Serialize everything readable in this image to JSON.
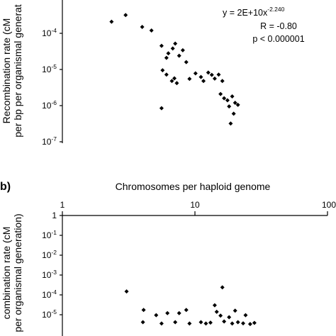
{
  "chart_data": [
    {
      "type": "scatter",
      "title": "",
      "ylabel_line1": "Recombination rate (cM",
      "ylabel_line2": "per bp per organismal generat",
      "x_scale": "log",
      "xlim": [
        1,
        100
      ],
      "y_scale": "log",
      "ylim": [
        1e-07,
        0.001
      ],
      "y_ticks": [
        {
          "value": 0.0001,
          "base": "10",
          "exp": "-4"
        },
        {
          "value": 1e-05,
          "base": "10",
          "exp": "-5"
        },
        {
          "value": 1e-06,
          "base": "10",
          "exp": "-6"
        },
        {
          "value": 1e-07,
          "base": "10",
          "exp": "-7"
        }
      ],
      "annotation": {
        "equation_prefix": "y = 2E+10x",
        "equation_exp": "-2.240",
        "r_text": "R = -0.80",
        "p_text": "p < 0.000001"
      },
      "trendline": {
        "a": 20000000000,
        "b": -2.24,
        "x_from": 2.6,
        "x_to": 27
      },
      "points": [
        {
          "x": 2.35,
          "y": 0.00021
        },
        {
          "x": 3.0,
          "y": 0.00032
        },
        {
          "x": 4.0,
          "y": 0.00015
        },
        {
          "x": 4.7,
          "y": 0.00012
        },
        {
          "x": 5.6,
          "y": 4.5e-05
        },
        {
          "x": 6.8,
          "y": 3.8e-05
        },
        {
          "x": 7.1,
          "y": 5.2e-05
        },
        {
          "x": 6.3,
          "y": 2.8e-05
        },
        {
          "x": 6.1,
          "y": 2.1e-05
        },
        {
          "x": 7.6,
          "y": 2.4e-05
        },
        {
          "x": 8.1,
          "y": 3.4e-05
        },
        {
          "x": 5.7,
          "y": 9.5e-06
        },
        {
          "x": 6.1,
          "y": 7.2e-06
        },
        {
          "x": 6.7,
          "y": 4.8e-06
        },
        {
          "x": 7.0,
          "y": 5.7e-06
        },
        {
          "x": 7.3,
          "y": 4.2e-06
        },
        {
          "x": 8.6,
          "y": 1.6e-05
        },
        {
          "x": 9.1,
          "y": 5.5e-06
        },
        {
          "x": 10.1,
          "y": 7.8e-06
        },
        {
          "x": 11.1,
          "y": 6.2e-06
        },
        {
          "x": 11.6,
          "y": 4.8e-06
        },
        {
          "x": 12.6,
          "y": 8.2e-06
        },
        {
          "x": 13.4,
          "y": 7.1e-06
        },
        {
          "x": 14.1,
          "y": 5.6e-06
        },
        {
          "x": 15.1,
          "y": 7.2e-06
        },
        {
          "x": 16.1,
          "y": 4.8e-06
        },
        {
          "x": 15.6,
          "y": 2.1e-06
        },
        {
          "x": 16.6,
          "y": 1.6e-06
        },
        {
          "x": 17.6,
          "y": 1.4e-06
        },
        {
          "x": 19.1,
          "y": 1.8e-06
        },
        {
          "x": 18.1,
          "y": 9.5e-07
        },
        {
          "x": 20.1,
          "y": 1.2e-06
        },
        {
          "x": 21.1,
          "y": 1.05e-06
        },
        {
          "x": 5.6,
          "y": 8.5e-07
        },
        {
          "x": 18.6,
          "y": 3.2e-07
        },
        {
          "x": 19.6,
          "y": 6e-07
        }
      ]
    },
    {
      "type": "scatter",
      "panel_label": "b)",
      "title": "",
      "xlabel": "Chromosomes per haploid genome",
      "ylabel_line1": "combination rate (cM",
      "ylabel_line2": "per organismal generation)",
      "x_scale": "log",
      "xlim": [
        1,
        100
      ],
      "x_ticks": [
        {
          "value": 1,
          "label": "1"
        },
        {
          "value": 10,
          "label": "10"
        },
        {
          "value": 100,
          "label": "100"
        }
      ],
      "y_scale": "log",
      "ylim": [
        1e-06,
        1
      ],
      "y_ticks": [
        {
          "value": 1,
          "base": "1",
          "exp": ""
        },
        {
          "value": 0.1,
          "base": "10",
          "exp": "-1"
        },
        {
          "value": 0.01,
          "base": "10",
          "exp": "-2"
        },
        {
          "value": 0.001,
          "base": "10",
          "exp": "-3"
        },
        {
          "value": 0.0001,
          "base": "10",
          "exp": "-4"
        },
        {
          "value": 1e-05,
          "base": "10",
          "exp": "-5"
        }
      ],
      "points": [
        {
          "x": 3.05,
          "y": 0.00015
        },
        {
          "x": 4.1,
          "y": 1.75e-05
        },
        {
          "x": 5.1,
          "y": 9.5e-06
        },
        {
          "x": 6.2,
          "y": 1.2e-05
        },
        {
          "x": 7.6,
          "y": 1.2e-05
        },
        {
          "x": 8.6,
          "y": 1.75e-05
        },
        {
          "x": 14.1,
          "y": 3e-05
        },
        {
          "x": 16.1,
          "y": 0.00024
        },
        {
          "x": 14.6,
          "y": 1.4e-05
        },
        {
          "x": 15.6,
          "y": 9e-06
        },
        {
          "x": 18.1,
          "y": 7.5e-06
        },
        {
          "x": 20.1,
          "y": 1.6e-05
        },
        {
          "x": 24.1,
          "y": 9.5e-06
        },
        {
          "x": 4.05,
          "y": 4.2e-06
        },
        {
          "x": 5.6,
          "y": 3.6e-06
        },
        {
          "x": 7.1,
          "y": 4.2e-06
        },
        {
          "x": 9.1,
          "y": 3.6e-06
        },
        {
          "x": 11.1,
          "y": 4.2e-06
        },
        {
          "x": 12.1,
          "y": 3.6e-06
        },
        {
          "x": 13.1,
          "y": 4e-06
        },
        {
          "x": 16.6,
          "y": 4.6e-06
        },
        {
          "x": 19.1,
          "y": 3.6e-06
        },
        {
          "x": 21.1,
          "y": 4.2e-06
        },
        {
          "x": 23.1,
          "y": 3.7e-06
        },
        {
          "x": 26.1,
          "y": 3.4e-06
        },
        {
          "x": 28.1,
          "y": 3.9e-06
        }
      ]
    }
  ]
}
